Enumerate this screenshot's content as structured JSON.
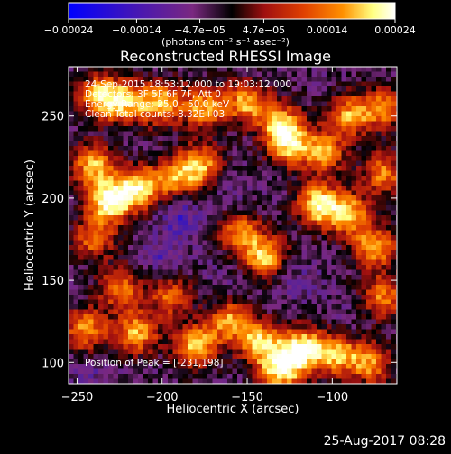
{
  "chart_data": {
    "type": "heatmap",
    "title": "Reconstructed RHESSI Image",
    "xlabel": "Heliocentric X (arcsec)",
    "ylabel": "Heliocentric Y (arcsec)",
    "xlim": [
      -255,
      -62
    ],
    "ylim": [
      87,
      280
    ],
    "x_ticks": [
      -250,
      -200,
      -150,
      -100
    ],
    "y_ticks": [
      100,
      150,
      200,
      250
    ],
    "grid": false,
    "colorbar": {
      "location": "top",
      "range": [
        -0.00024,
        0.00024
      ],
      "ticks": [
        "-0.00024",
        "-0.00014",
        "-4.7e-05",
        "4.7e-05",
        "0.00014",
        "0.00024"
      ],
      "unit_label": "(photons cm⁻² s⁻¹ asec⁻²)",
      "colormap": [
        "#0000ff",
        "#5020a0",
        "#7a2880",
        "#000000",
        "#a01010",
        "#e04000",
        "#ff9000",
        "#ffff80",
        "#ffffff"
      ]
    },
    "annotations": [
      "24-Sep-2015 18:53:12.000 to 19:03:12.000",
      "Detectors: 3F 5F 6F 7F, Att 0",
      "Energy Range: 25.0 - 50.0 keV",
      "Clean    Total counts: 8.32E+03",
      "Position of Peak = [-231,198]"
    ],
    "peak": [
      -231,
      198
    ],
    "bright_sources": [
      {
        "x": -236,
        "y": 262,
        "v": 0.00018
      },
      {
        "x": -220,
        "y": 258,
        "v": 0.00014
      },
      {
        "x": -200,
        "y": 258,
        "v": 0.00016
      },
      {
        "x": -175,
        "y": 255,
        "v": 0.00015
      },
      {
        "x": -150,
        "y": 258,
        "v": 0.00015
      },
      {
        "x": -130,
        "y": 245,
        "v": 0.00016
      },
      {
        "x": -90,
        "y": 250,
        "v": 0.00014
      },
      {
        "x": -70,
        "y": 255,
        "v": 0.00012
      },
      {
        "x": -240,
        "y": 220,
        "v": 0.00016
      },
      {
        "x": -231,
        "y": 198,
        "v": 0.00024
      },
      {
        "x": -214,
        "y": 206,
        "v": 0.0002
      },
      {
        "x": -193,
        "y": 212,
        "v": 0.00012
      },
      {
        "x": -178,
        "y": 220,
        "v": 0.00016
      },
      {
        "x": -125,
        "y": 232,
        "v": 0.00015
      },
      {
        "x": -105,
        "y": 228,
        "v": 0.00014
      },
      {
        "x": -108,
        "y": 196,
        "v": 0.00022
      },
      {
        "x": -90,
        "y": 190,
        "v": 0.00016
      },
      {
        "x": -70,
        "y": 215,
        "v": 0.00012
      },
      {
        "x": -140,
        "y": 165,
        "v": 0.00018
      },
      {
        "x": -155,
        "y": 180,
        "v": 0.00012
      },
      {
        "x": -75,
        "y": 170,
        "v": 0.00016
      },
      {
        "x": -240,
        "y": 175,
        "v": 0.0001
      },
      {
        "x": -225,
        "y": 145,
        "v": 0.00012
      },
      {
        "x": -195,
        "y": 140,
        "v": 0.0001
      },
      {
        "x": -245,
        "y": 120,
        "v": 0.00014
      },
      {
        "x": -215,
        "y": 118,
        "v": 0.00016
      },
      {
        "x": -180,
        "y": 110,
        "v": 0.00018
      },
      {
        "x": -160,
        "y": 125,
        "v": 0.00014
      },
      {
        "x": -142,
        "y": 112,
        "v": 0.00018
      },
      {
        "x": -118,
        "y": 108,
        "v": 0.00022
      },
      {
        "x": -98,
        "y": 105,
        "v": 0.00016
      },
      {
        "x": -78,
        "y": 100,
        "v": 0.00014
      },
      {
        "x": -70,
        "y": 140,
        "v": 0.00012
      },
      {
        "x": -130,
        "y": 95,
        "v": 0.0002
      }
    ],
    "dark_sources": [
      {
        "x": -190,
        "y": 190,
        "v": -0.00016
      },
      {
        "x": -160,
        "y": 200,
        "v": -0.00012
      },
      {
        "x": -200,
        "y": 165,
        "v": -0.00014
      },
      {
        "x": -165,
        "y": 150,
        "v": -0.0001
      },
      {
        "x": -120,
        "y": 150,
        "v": -0.00012
      },
      {
        "x": -150,
        "y": 235,
        "v": -8e-05
      },
      {
        "x": -240,
        "y": 95,
        "v": -0.00012
      },
      {
        "x": -90,
        "y": 125,
        "v": -0.0001
      }
    ]
  },
  "footer": {
    "date": "25-Aug-2017 08:28"
  }
}
